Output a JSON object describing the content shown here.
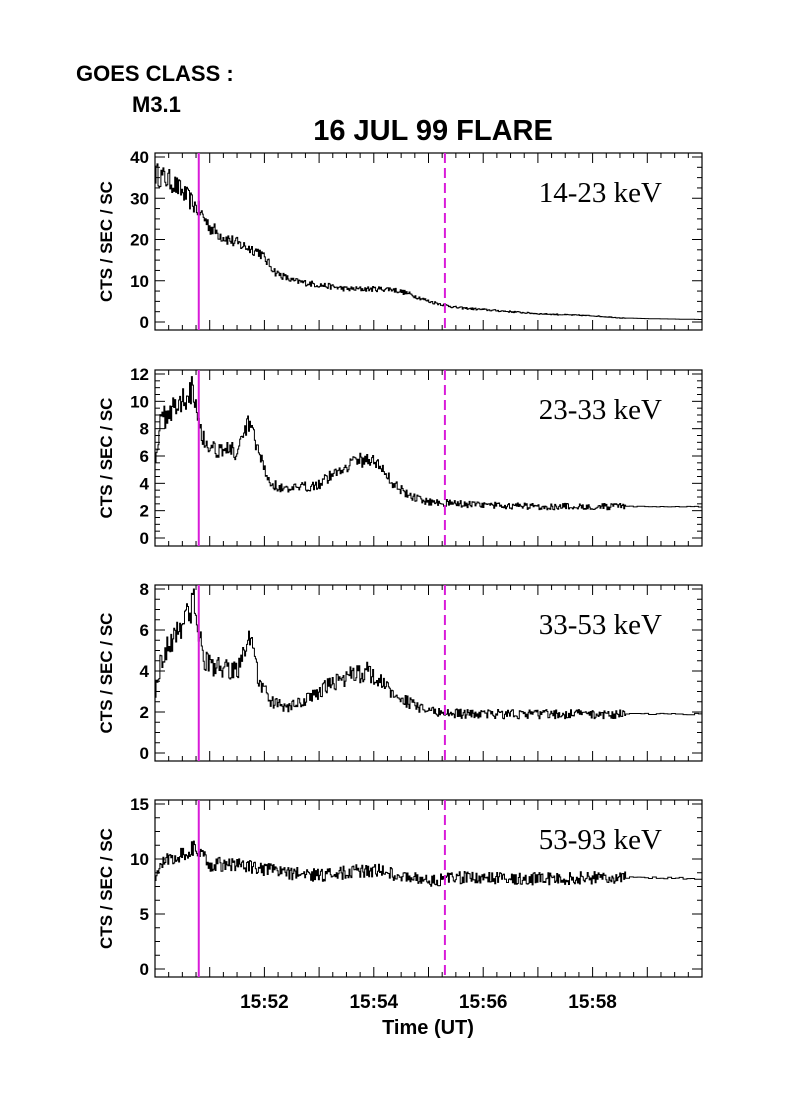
{
  "goes_class_label": "GOES CLASS :",
  "goes_class_value": "M3.1",
  "title": "16 JUL 99 FLARE",
  "xlabel": "Time (UT)",
  "x_tick_labels": [
    "15:52",
    "15:54",
    "15:56",
    "15:58"
  ],
  "colors": {
    "marker": "#d81bd8",
    "trace": "#000000"
  },
  "chart_data": [
    {
      "type": "line",
      "band": "14-23 keV",
      "ylabel": "CTS / SEC / SC",
      "ylim": [
        0,
        40
      ],
      "yticks": [
        0,
        10,
        20,
        30,
        40
      ],
      "xlim": [
        0,
        10
      ],
      "x_unit": "minutes after 15:50 UT",
      "grid": false,
      "noise": 0.08,
      "x": [
        0,
        0.3,
        0.6,
        0.8,
        1.0,
        1.2,
        1.5,
        1.7,
        1.9,
        2.2,
        2.5,
        3.0,
        3.5,
        4.0,
        4.3,
        4.6,
        5.0,
        5.5,
        6.0,
        7.0,
        8.0,
        8.5,
        9.0,
        10.0
      ],
      "y": [
        36,
        34,
        30,
        27,
        23,
        21,
        19,
        18,
        17,
        12,
        10,
        9,
        8,
        8,
        8,
        7,
        5,
        3.5,
        3,
        2,
        1.5,
        1,
        0.8,
        0.6
      ],
      "markers": [
        {
          "x": 0.8,
          "style": "solid"
        },
        {
          "x": 5.3,
          "style": "dashed"
        }
      ]
    },
    {
      "type": "line",
      "band": "23-33 keV",
      "ylabel": "CTS / SEC / SC",
      "ylim": [
        0,
        12
      ],
      "yticks": [
        0,
        2,
        4,
        6,
        8,
        10,
        12
      ],
      "xlim": [
        0,
        10
      ],
      "x_unit": "minutes after 15:50 UT",
      "grid": false,
      "noise": 0.1,
      "x": [
        0,
        0.1,
        0.3,
        0.5,
        0.6,
        0.7,
        0.8,
        0.9,
        1.1,
        1.4,
        1.5,
        1.7,
        1.9,
        2.1,
        2.4,
        2.7,
        3.0,
        3.3,
        3.6,
        3.9,
        4.1,
        4.3,
        4.6,
        4.9,
        5.2,
        5.6,
        6.0,
        7.0,
        8.0,
        9.0,
        10.0
      ],
      "y": [
        6,
        8.5,
        9.5,
        10,
        10.8,
        11,
        8.5,
        7,
        6.5,
        6.5,
        6,
        8.5,
        6,
        4,
        3.5,
        3.7,
        4,
        4.8,
        5.6,
        5.8,
        5.3,
        4.2,
        3.2,
        2.7,
        2.6,
        2.5,
        2.4,
        2.3,
        2.3,
        2.3,
        2.3
      ],
      "markers": [
        {
          "x": 0.8,
          "style": "solid"
        },
        {
          "x": 5.3,
          "style": "dashed"
        }
      ]
    },
    {
      "type": "line",
      "band": "33-53 keV",
      "ylabel": "CTS / SEC / SC",
      "ylim": [
        0,
        8
      ],
      "yticks": [
        0,
        2,
        4,
        6,
        8
      ],
      "xlim": [
        0,
        10
      ],
      "x_unit": "minutes after 15:50 UT",
      "grid": false,
      "noise": 0.12,
      "x": [
        0,
        0.1,
        0.3,
        0.5,
        0.7,
        0.8,
        0.9,
        1.1,
        1.4,
        1.5,
        1.7,
        1.9,
        2.1,
        2.4,
        2.7,
        3.0,
        3.3,
        3.6,
        3.9,
        4.1,
        4.3,
        4.6,
        4.9,
        5.2,
        5.6,
        6.0,
        7.0,
        8.0,
        9.0,
        10.0
      ],
      "y": [
        3,
        4.5,
        5.5,
        6.5,
        7.2,
        6,
        4.5,
        4.2,
        4,
        4,
        5.8,
        3.5,
        2.5,
        2.2,
        2.5,
        3,
        3.5,
        3.8,
        4,
        3.5,
        3,
        2.5,
        2.1,
        2,
        1.9,
        1.9,
        1.9,
        1.9,
        1.9,
        1.9
      ],
      "markers": [
        {
          "x": 0.8,
          "style": "solid"
        },
        {
          "x": 5.3,
          "style": "dashed"
        }
      ]
    },
    {
      "type": "line",
      "band": "53-93 keV",
      "ylabel": "CTS / SEC / SC",
      "ylim": [
        0,
        15
      ],
      "yticks": [
        0,
        5,
        10,
        15
      ],
      "xlim": [
        0,
        10
      ],
      "x_unit": "minutes after 15:50 UT",
      "grid": false,
      "noise": 0.07,
      "x": [
        0,
        0.2,
        0.5,
        0.7,
        0.8,
        1.0,
        1.5,
        2.0,
        2.5,
        3.0,
        3.5,
        4.0,
        4.5,
        5.0,
        5.5,
        6.0,
        7.0,
        8.0,
        9.0,
        10.0
      ],
      "y": [
        8.5,
        10,
        10.5,
        11,
        10.5,
        9.5,
        9.5,
        9,
        8.7,
        8.5,
        8.8,
        9,
        8.5,
        8,
        8.3,
        8.3,
        8.2,
        8.3,
        8.3,
        8.2
      ],
      "markers": [
        {
          "x": 0.8,
          "style": "solid"
        },
        {
          "x": 5.3,
          "style": "dashed"
        }
      ]
    }
  ]
}
